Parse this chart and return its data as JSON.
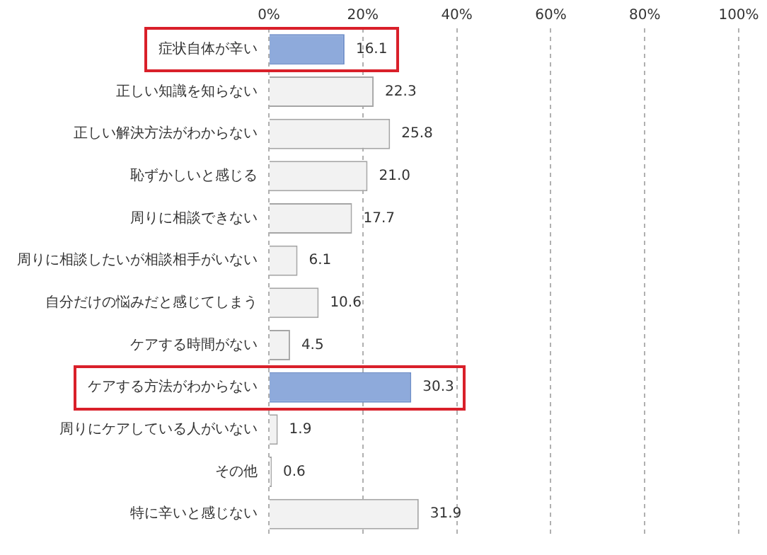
{
  "chart_data": {
    "type": "bar",
    "orientation": "horizontal",
    "categories": [
      "症状自体が辛い",
      "正しい知識を知らない",
      "正しい解決方法がわからない",
      "恥ずかしいと感じる",
      "周りに相談できない",
      "周りに相談したいが相談相手がいない",
      "自分だけの悩みだと感じてしまう",
      "ケアする時間がない",
      "ケアする方法がわからない",
      "周りにケアしている人がいない",
      "その他",
      "特に辛いと感じない"
    ],
    "values": [
      16.1,
      22.3,
      25.8,
      21.0,
      17.7,
      6.1,
      10.6,
      4.5,
      30.3,
      1.9,
      0.6,
      31.9
    ],
    "value_labels": [
      "16.1",
      "22.3",
      "25.8",
      "21.0",
      "17.7",
      "6.1",
      "10.6",
      "4.5",
      "30.3",
      "1.9",
      "0.6",
      "31.9"
    ],
    "colors": [
      "#8eaadb",
      "#f2f2f2",
      "#f2f2f2",
      "#f2f2f2",
      "#f2f2f2",
      "#f2f2f2",
      "#f2f2f2",
      "#f2f2f2",
      "#8eaadb",
      "#f2f2f2",
      "#f2f2f2",
      "#f2f2f2"
    ],
    "xlim": [
      0,
      100
    ],
    "xticks": [
      {
        "value": 0,
        "label": "0%"
      },
      {
        "value": 20,
        "label": "20%"
      },
      {
        "value": 40,
        "label": "40%"
      },
      {
        "value": 60,
        "label": "60%"
      },
      {
        "value": 80,
        "label": "80%"
      },
      {
        "value": 100,
        "label": "100%"
      }
    ],
    "grid": "x"
  }
}
